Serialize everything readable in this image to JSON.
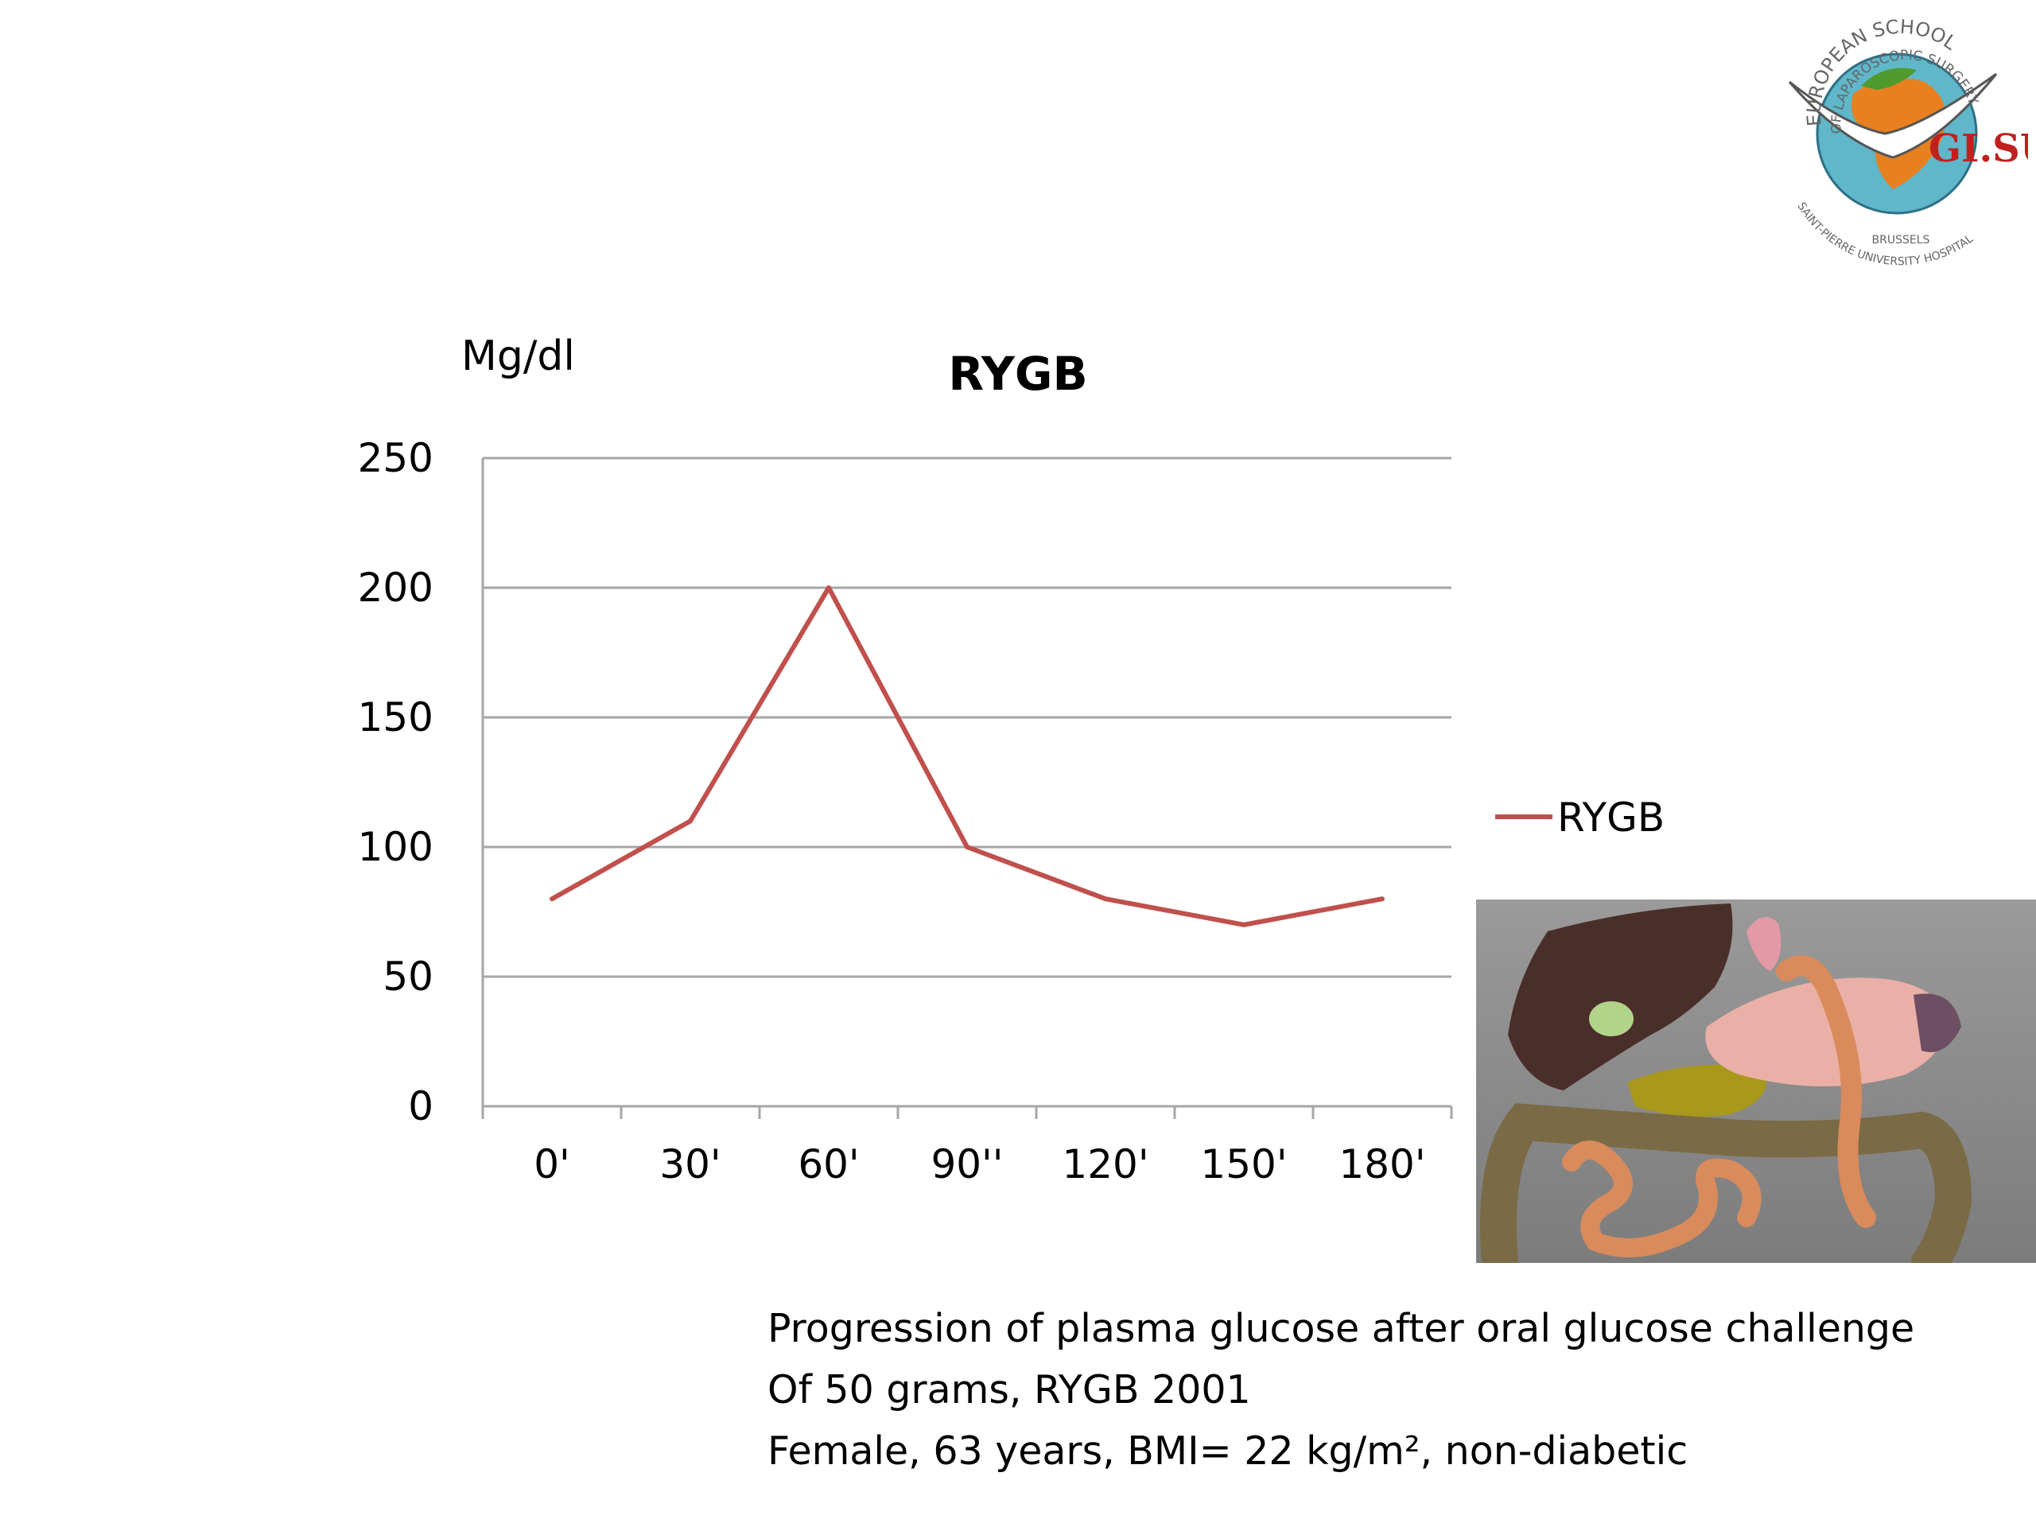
{
  "chart_data": {
    "type": "line",
    "title": "RYGB",
    "ylabel": "Mg/dl",
    "xlabel": "",
    "categories": [
      "0'",
      "30'",
      "60'",
      "90''",
      "120'",
      "150'",
      "180'"
    ],
    "series": [
      {
        "name": "RYGB",
        "values": [
          80,
          110,
          200,
          100,
          80,
          70,
          80
        ],
        "color": "#c0504d"
      }
    ],
    "ylim": [
      0,
      250
    ],
    "yticks": [
      0,
      50,
      100,
      150,
      200,
      250
    ],
    "grid": true,
    "legend": "right"
  },
  "caption": {
    "line1": "Progression of plasma glucose after oral glucose challenge",
    "line2": "Of 50 grams, RYGB 2001",
    "line3": "Female, 63 years, BMI= 22 kg/m², non-diabetic"
  },
  "logo": {
    "name": "european-school-laparoscopic-surgery-logo",
    "text_top": "EUROPEAN SCHOOL",
    "text_mid": "OF LAPAROSCOPIC SURGERY",
    "text_brand": "GI.SURGERY",
    "text_city": "BRUSSELS",
    "text_bottom": "SAINT-PIERRE UNIVERSITY HOSPITAL"
  },
  "illustration": {
    "name": "rygb-anatomy-illustration"
  }
}
